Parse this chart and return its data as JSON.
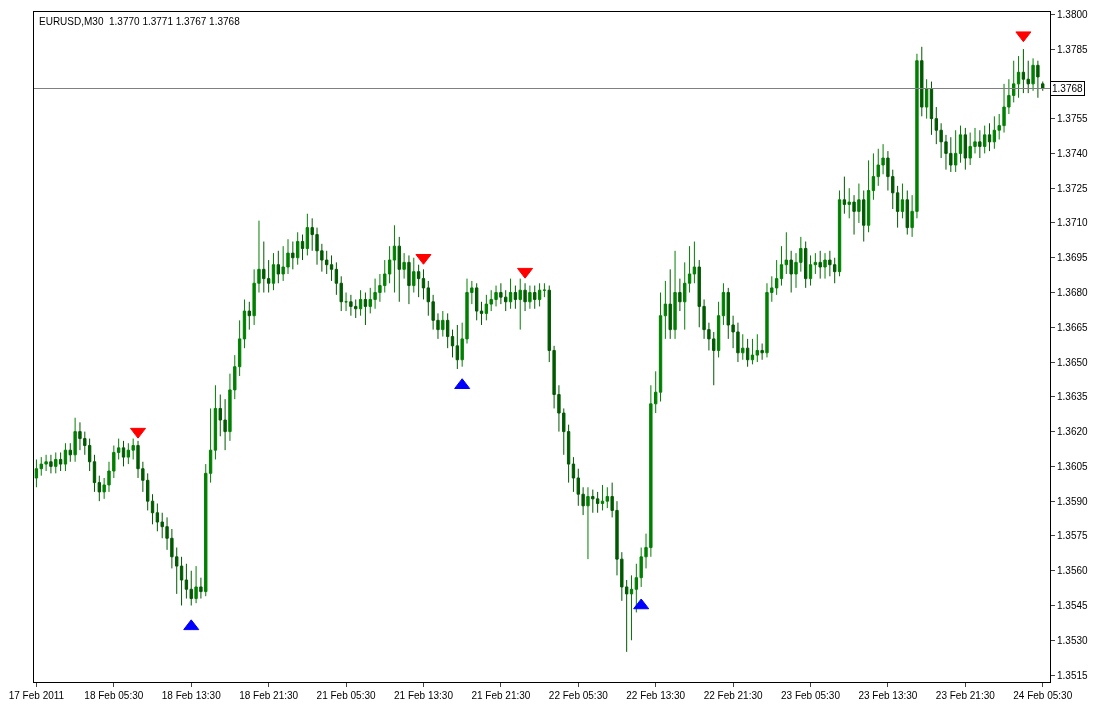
{
  "chart_data": {
    "type": "candlestick",
    "title": "EURUSD,M30  1.3770 1.3771 1.3767 1.3768",
    "colors": [
      "#008000",
      "#008000",
      "#008000",
      "#005900",
      "#008000",
      "#005900",
      "#008000",
      "#005900",
      "#008000",
      "#005900",
      "#005900",
      "#005900",
      "#005900",
      "#005900",
      "#008000",
      "#008000",
      "#008000",
      "#008000",
      "#005900",
      "#008000",
      "#008000",
      "#005900",
      "#005900",
      "#005900",
      "#005900",
      "#005900",
      "#005900",
      "#005900",
      "#005900",
      "#005900",
      "#005900",
      "#005900",
      "#005900",
      "#008000",
      "#005900",
      "#008000",
      "#008000",
      "#008000",
      "#005900",
      "#005900",
      "#008000",
      "#008000",
      "#008000",
      "#008000",
      "#005900",
      "#008000",
      "#008000",
      "#005900",
      "#005900",
      "#008000",
      "#005900",
      "#008000",
      "#008000",
      "#005900",
      "#008000",
      "#005900",
      "#008000",
      "#005900",
      "#005900",
      "#005900",
      "#005900",
      "#005900",
      "#005900",
      "#005900",
      "#008000",
      "#005900",
      "#005900",
      "#008000",
      "#005900",
      "#008000",
      "#008000",
      "#008000",
      "#008000",
      "#008000",
      "#008000",
      "#005900",
      "#008000",
      "#005900",
      "#008000",
      "#005900",
      "#005900",
      "#005900",
      "#005900",
      "#005900",
      "#008000",
      "#005900",
      "#005900",
      "#005900",
      "#008000",
      "#008000",
      "#008000",
      "#005900",
      "#005900",
      "#008000",
      "#008000",
      "#008000",
      "#005900",
      "#005900",
      "#008000",
      "#005900",
      "#008000",
      "#005900",
      "#008000",
      "#005900",
      "#008000",
      "#008000",
      "#005900",
      "#005900",
      "#005900",
      "#005900",
      "#005900",
      "#005900",
      "#005900",
      "#005900",
      "#008000",
      "#005900",
      "#005900",
      "#008000",
      "#008000",
      "#005900",
      "#005900",
      "#005900",
      "#005900",
      "#008000",
      "#008000",
      "#008000",
      "#008000",
      "#008000",
      "#008000",
      "#008000",
      "#008000",
      "#005900",
      "#008000",
      "#005900",
      "#008000",
      "#008000",
      "#008000",
      "#005900",
      "#005900",
      "#005900",
      "#005900",
      "#008000",
      "#008000",
      "#005900",
      "#005900",
      "#005900",
      "#008000",
      "#005900",
      "#008000",
      "#008000",
      "#005900",
      "#008000",
      "#008000",
      "#008000",
      "#008000",
      "#008000",
      "#005900",
      "#008000",
      "#008000",
      "#005900",
      "#008000",
      "#008000",
      "#005900",
      "#008000",
      "#005900",
      "#005900",
      "#008000",
      "#005900",
      "#008000",
      "#005900",
      "#008000",
      "#005900",
      "#008000",
      "#008000",
      "#008000",
      "#008000",
      "#005900",
      "#005900",
      "#005900",
      "#008000",
      "#005900",
      "#008000",
      "#008000",
      "#005900",
      "#008000",
      "#005900",
      "#005900",
      "#005900",
      "#005900",
      "#005900",
      "#008000",
      "#008000",
      "#005900",
      "#008000",
      "#008000",
      "#005900",
      "#008000",
      "#005900",
      "#008000",
      "#008000",
      "#008000",
      "#008000",
      "#008000",
      "#008000",
      "#005900",
      "#005900",
      "#008000",
      "#005900",
      "#005900"
    ],
    "categories": [
      "17 Feb 2011",
      null,
      null,
      null,
      null,
      null,
      null,
      null,
      null,
      null,
      null,
      null,
      null,
      null,
      null,
      null,
      "18 Feb 05:30",
      null,
      null,
      null,
      null,
      null,
      null,
      null,
      null,
      null,
      null,
      null,
      null,
      null,
      null,
      null,
      "18 Feb 13:30",
      null,
      null,
      null,
      null,
      null,
      null,
      null,
      null,
      null,
      null,
      null,
      null,
      null,
      null,
      null,
      "18 Feb 21:30",
      null,
      null,
      null,
      null,
      null,
      null,
      null,
      null,
      null,
      null,
      null,
      null,
      null,
      null,
      null,
      "21 Feb 05:30",
      null,
      null,
      null,
      null,
      null,
      null,
      null,
      null,
      null,
      null,
      null,
      null,
      null,
      null,
      null,
      "21 Feb 13:30",
      null,
      null,
      null,
      null,
      null,
      null,
      null,
      null,
      null,
      null,
      null,
      null,
      null,
      null,
      null,
      "21 Feb 21:30",
      null,
      null,
      null,
      null,
      null,
      null,
      null,
      null,
      null,
      null,
      null,
      null,
      null,
      null,
      null,
      "22 Feb 05:30",
      null,
      null,
      null,
      null,
      null,
      null,
      null,
      null,
      null,
      null,
      null,
      null,
      null,
      null,
      null,
      "22 Feb 13:30",
      null,
      null,
      null,
      null,
      null,
      null,
      null,
      null,
      null,
      null,
      null,
      null,
      null,
      null,
      null,
      "22 Feb 21:30",
      null,
      null,
      null,
      null,
      null,
      null,
      null,
      null,
      null,
      null,
      null,
      null,
      null,
      null,
      null,
      "23 Feb 05:30",
      null,
      null,
      null,
      null,
      null,
      null,
      null,
      null,
      null,
      null,
      null,
      null,
      null,
      null,
      null,
      "23 Feb 13:30",
      null,
      null,
      null,
      null,
      null,
      null,
      null,
      null,
      null,
      null,
      null,
      null,
      null,
      null,
      null,
      "23 Feb 21:30",
      null,
      null,
      null,
      null,
      null,
      null,
      null,
      null,
      null,
      null,
      null,
      null,
      null,
      null,
      null,
      "24 Feb 05:30"
    ],
    "ohlc": [
      [
        1.36,
        1.3608,
        1.3596,
        1.3604
      ],
      [
        1.3604,
        1.3609,
        1.3601,
        1.3606
      ],
      [
        1.3606,
        1.361,
        1.3603,
        1.3607
      ],
      [
        1.3607,
        1.361,
        1.3602,
        1.3605
      ],
      [
        1.3605,
        1.3611,
        1.3602,
        1.3608
      ],
      [
        1.3608,
        1.3611,
        1.3603,
        1.3606
      ],
      [
        1.3606,
        1.3615,
        1.3603,
        1.3612
      ],
      [
        1.3612,
        1.3615,
        1.3607,
        1.361
      ],
      [
        1.361,
        1.3626,
        1.3607,
        1.362
      ],
      [
        1.362,
        1.3624,
        1.3612,
        1.3617
      ],
      [
        1.3617,
        1.362,
        1.361,
        1.3614
      ],
      [
        1.3614,
        1.3617,
        1.3603,
        1.3607
      ],
      [
        1.3607,
        1.361,
        1.3594,
        1.3598
      ],
      [
        1.3598,
        1.3601,
        1.359,
        1.3594
      ],
      [
        1.3594,
        1.36,
        1.3591,
        1.3597
      ],
      [
        1.3597,
        1.3607,
        1.3594,
        1.3603
      ],
      [
        1.3603,
        1.3614,
        1.36,
        1.3611
      ],
      [
        1.3611,
        1.3617,
        1.3608,
        1.3613
      ],
      [
        1.3613,
        1.3616,
        1.3605,
        1.3609
      ],
      [
        1.3609,
        1.3615,
        1.3606,
        1.3612
      ],
      [
        1.3612,
        1.3617,
        1.3608,
        1.3614
      ],
      [
        1.3614,
        1.3616,
        1.36,
        1.3604
      ],
      [
        1.3604,
        1.3607,
        1.3594,
        1.3599
      ],
      [
        1.3599,
        1.3602,
        1.3586,
        1.359
      ],
      [
        1.359,
        1.3593,
        1.358,
        1.3585
      ],
      [
        1.3585,
        1.3589,
        1.3577,
        1.3581
      ],
      [
        1.3581,
        1.3585,
        1.3574,
        1.3579
      ],
      [
        1.3579,
        1.3583,
        1.3569,
        1.3574
      ],
      [
        1.3574,
        1.3578,
        1.3561,
        1.3566
      ],
      [
        1.3566,
        1.357,
        1.355,
        1.3562
      ],
      [
        1.3562,
        1.3566,
        1.3545,
        1.3556
      ],
      [
        1.3556,
        1.3563,
        1.3548,
        1.3552
      ],
      [
        1.3552,
        1.356,
        1.3545,
        1.3548
      ],
      [
        1.3548,
        1.3562,
        1.3546,
        1.3553
      ],
      [
        1.3553,
        1.3557,
        1.3548,
        1.3551
      ],
      [
        1.3551,
        1.3606,
        1.3549,
        1.3602
      ],
      [
        1.3602,
        1.363,
        1.3598,
        1.3612
      ],
      [
        1.3612,
        1.364,
        1.3608,
        1.363
      ],
      [
        1.363,
        1.3636,
        1.3618,
        1.3625
      ],
      [
        1.3625,
        1.3634,
        1.3612,
        1.362
      ],
      [
        1.362,
        1.3645,
        1.3616,
        1.3638
      ],
      [
        1.3638,
        1.3653,
        1.3634,
        1.3648
      ],
      [
        1.3648,
        1.3668,
        1.3644,
        1.366
      ],
      [
        1.366,
        1.3677,
        1.3656,
        1.3672
      ],
      [
        1.3672,
        1.3676,
        1.3664,
        1.367
      ],
      [
        1.367,
        1.369,
        1.3666,
        1.3684
      ],
      [
        1.3684,
        1.3711,
        1.368,
        1.369
      ],
      [
        1.369,
        1.3702,
        1.368,
        1.3686
      ],
      [
        1.3686,
        1.3694,
        1.368,
        1.3684
      ],
      [
        1.3684,
        1.3697,
        1.3681,
        1.3692
      ],
      [
        1.3692,
        1.3698,
        1.3684,
        1.3688
      ],
      [
        1.3688,
        1.37,
        1.3685,
        1.3691
      ],
      [
        1.3691,
        1.3703,
        1.3688,
        1.3697
      ],
      [
        1.3697,
        1.3702,
        1.369,
        1.3695
      ],
      [
        1.3695,
        1.3706,
        1.3692,
        1.3702
      ],
      [
        1.3702,
        1.3705,
        1.3694,
        1.3699
      ],
      [
        1.3699,
        1.3714,
        1.3696,
        1.3708
      ],
      [
        1.3708,
        1.3712,
        1.3698,
        1.3705
      ],
      [
        1.3705,
        1.3708,
        1.3692,
        1.3698
      ],
      [
        1.3698,
        1.3701,
        1.3689,
        1.3694
      ],
      [
        1.3694,
        1.3698,
        1.3688,
        1.3692
      ],
      [
        1.3692,
        1.3696,
        1.3685,
        1.369
      ],
      [
        1.369,
        1.3693,
        1.3679,
        1.3684
      ],
      [
        1.3684,
        1.3687,
        1.3672,
        1.3676
      ],
      [
        1.3676,
        1.368,
        1.3672,
        1.3676
      ],
      [
        1.3676,
        1.3679,
        1.367,
        1.3674
      ],
      [
        1.3674,
        1.3677,
        1.3669,
        1.3673
      ],
      [
        1.3673,
        1.3681,
        1.367,
        1.3677
      ],
      [
        1.3677,
        1.368,
        1.3666,
        1.3674
      ],
      [
        1.3674,
        1.3682,
        1.3671,
        1.3677
      ],
      [
        1.3677,
        1.3686,
        1.3673,
        1.368
      ],
      [
        1.368,
        1.3688,
        1.3676,
        1.3683
      ],
      [
        1.3683,
        1.3694,
        1.368,
        1.3688
      ],
      [
        1.3688,
        1.37,
        1.3684,
        1.3694
      ],
      [
        1.3694,
        1.3709,
        1.368,
        1.37
      ],
      [
        1.37,
        1.3704,
        1.3676,
        1.369
      ],
      [
        1.369,
        1.3697,
        1.3686,
        1.3693
      ],
      [
        1.3693,
        1.3696,
        1.3675,
        1.3683
      ],
      [
        1.3683,
        1.3695,
        1.368,
        1.3689
      ],
      [
        1.3689,
        1.3692,
        1.3678,
        1.3686
      ],
      [
        1.3686,
        1.369,
        1.3677,
        1.3682
      ],
      [
        1.3682,
        1.3685,
        1.367,
        1.3676
      ],
      [
        1.3676,
        1.3679,
        1.3664,
        1.3668
      ],
      [
        1.3668,
        1.3671,
        1.366,
        1.3664
      ],
      [
        1.3664,
        1.3672,
        1.3661,
        1.3668
      ],
      [
        1.3668,
        1.3671,
        1.3656,
        1.3661
      ],
      [
        1.3661,
        1.3664,
        1.3652,
        1.3657
      ],
      [
        1.3657,
        1.3666,
        1.3647,
        1.3651
      ],
      [
        1.3651,
        1.3667,
        1.3648,
        1.366
      ],
      [
        1.366,
        1.3686,
        1.3658,
        1.368
      ],
      [
        1.368,
        1.3685,
        1.3675,
        1.3682
      ],
      [
        1.3682,
        1.3684,
        1.3668,
        1.3672
      ],
      [
        1.3672,
        1.3676,
        1.3666,
        1.3671
      ],
      [
        1.3671,
        1.3679,
        1.3668,
        1.3675
      ],
      [
        1.3675,
        1.3681,
        1.3672,
        1.3677
      ],
      [
        1.3677,
        1.3683,
        1.3674,
        1.368
      ],
      [
        1.368,
        1.3684,
        1.3675,
        1.3678
      ],
      [
        1.3678,
        1.3681,
        1.3672,
        1.3676
      ],
      [
        1.3676,
        1.3686,
        1.3673,
        1.368
      ],
      [
        1.368,
        1.3683,
        1.3673,
        1.3677
      ],
      [
        1.3677,
        1.3686,
        1.3664,
        1.3681
      ],
      [
        1.3681,
        1.3684,
        1.3672,
        1.3676
      ],
      [
        1.3676,
        1.3683,
        1.3673,
        1.368
      ],
      [
        1.368,
        1.3683,
        1.3673,
        1.3677
      ],
      [
        1.3677,
        1.3684,
        1.3674,
        1.3681
      ],
      [
        1.3681,
        1.3684,
        1.3678,
        1.3681
      ],
      [
        1.3681,
        1.3683,
        1.365,
        1.3655
      ],
      [
        1.3655,
        1.3657,
        1.363,
        1.3636
      ],
      [
        1.3636,
        1.364,
        1.362,
        1.3628
      ],
      [
        1.3628,
        1.363,
        1.361,
        1.362
      ],
      [
        1.362,
        1.3623,
        1.3598,
        1.3606
      ],
      [
        1.3606,
        1.3609,
        1.3594,
        1.36
      ],
      [
        1.36,
        1.3604,
        1.3588,
        1.3593
      ],
      [
        1.3593,
        1.3596,
        1.3584,
        1.3588
      ],
      [
        1.3588,
        1.3596,
        1.3565,
        1.3592
      ],
      [
        1.3592,
        1.3595,
        1.3585,
        1.3591
      ],
      [
        1.3591,
        1.3594,
        1.3585,
        1.3589
      ],
      [
        1.3589,
        1.3597,
        1.3586,
        1.359
      ],
      [
        1.359,
        1.3596,
        1.3587,
        1.3592
      ],
      [
        1.3592,
        1.3598,
        1.3583,
        1.3586
      ],
      [
        1.3586,
        1.359,
        1.3558,
        1.3565
      ],
      [
        1.3565,
        1.3568,
        1.3547,
        1.3553
      ],
      [
        1.3553,
        1.3556,
        1.3525,
        1.355
      ],
      [
        1.355,
        1.3558,
        1.353,
        1.3552
      ],
      [
        1.3552,
        1.3563,
        1.3542,
        1.3557
      ],
      [
        1.3557,
        1.357,
        1.3553,
        1.3566
      ],
      [
        1.3566,
        1.3576,
        1.3561,
        1.357
      ],
      [
        1.357,
        1.364,
        1.3566,
        1.3632
      ],
      [
        1.3632,
        1.3646,
        1.3628,
        1.3637
      ],
      [
        1.3637,
        1.368,
        1.3633,
        1.367
      ],
      [
        1.367,
        1.3685,
        1.366,
        1.3675
      ],
      [
        1.3675,
        1.369,
        1.366,
        1.3664
      ],
      [
        1.3664,
        1.3698,
        1.366,
        1.368
      ],
      [
        1.368,
        1.3686,
        1.3672,
        1.3676
      ],
      [
        1.3676,
        1.3693,
        1.3664,
        1.3684
      ],
      [
        1.3684,
        1.37,
        1.368,
        1.3688
      ],
      [
        1.3688,
        1.3702,
        1.3684,
        1.3691
      ],
      [
        1.3691,
        1.3694,
        1.3665,
        1.3674
      ],
      [
        1.3674,
        1.3677,
        1.366,
        1.3664
      ],
      [
        1.3664,
        1.3667,
        1.3655,
        1.366
      ],
      [
        1.366,
        1.3663,
        1.364,
        1.3655
      ],
      [
        1.3655,
        1.3676,
        1.3652,
        1.367
      ],
      [
        1.367,
        1.3684,
        1.3666,
        1.368
      ],
      [
        1.368,
        1.3682,
        1.366,
        1.3666
      ],
      [
        1.3666,
        1.367,
        1.3656,
        1.3663
      ],
      [
        1.3663,
        1.3667,
        1.365,
        1.3654
      ],
      [
        1.3654,
        1.3662,
        1.3651,
        1.3656
      ],
      [
        1.3656,
        1.366,
        1.3648,
        1.3651
      ],
      [
        1.3651,
        1.366,
        1.3649,
        1.3653
      ],
      [
        1.3653,
        1.3662,
        1.365,
        1.3655
      ],
      [
        1.3655,
        1.3658,
        1.3651,
        1.3654
      ],
      [
        1.3654,
        1.3684,
        1.3652,
        1.368
      ],
      [
        1.368,
        1.3687,
        1.3676,
        1.3682
      ],
      [
        1.3682,
        1.3694,
        1.3679,
        1.3686
      ],
      [
        1.3686,
        1.37,
        1.3683,
        1.3692
      ],
      [
        1.3692,
        1.3706,
        1.3688,
        1.3694
      ],
      [
        1.3694,
        1.3698,
        1.368,
        1.3688
      ],
      [
        1.3688,
        1.3697,
        1.3682,
        1.3693
      ],
      [
        1.3693,
        1.3704,
        1.3689,
        1.3699
      ],
      [
        1.3699,
        1.3702,
        1.3682,
        1.3686
      ],
      [
        1.3686,
        1.3696,
        1.3683,
        1.3692
      ],
      [
        1.3692,
        1.3697,
        1.3688,
        1.3693
      ],
      [
        1.3693,
        1.3698,
        1.3686,
        1.3691
      ],
      [
        1.3691,
        1.3697,
        1.3686,
        1.3694
      ],
      [
        1.3694,
        1.3698,
        1.3687,
        1.3692
      ],
      [
        1.3692,
        1.3695,
        1.3684,
        1.3689
      ],
      [
        1.3689,
        1.3724,
        1.3687,
        1.372
      ],
      [
        1.372,
        1.373,
        1.3714,
        1.3718
      ],
      [
        1.3718,
        1.3725,
        1.3712,
        1.3719
      ],
      [
        1.3719,
        1.3722,
        1.3705,
        1.3715
      ],
      [
        1.3715,
        1.3727,
        1.371,
        1.372
      ],
      [
        1.372,
        1.3724,
        1.3702,
        1.3709
      ],
      [
        1.3709,
        1.3737,
        1.3706,
        1.3724
      ],
      [
        1.3724,
        1.374,
        1.372,
        1.373
      ],
      [
        1.373,
        1.3742,
        1.3726,
        1.3735
      ],
      [
        1.3735,
        1.3744,
        1.3731,
        1.3738
      ],
      [
        1.3738,
        1.3741,
        1.3724,
        1.373
      ],
      [
        1.373,
        1.3733,
        1.3716,
        1.3723
      ],
      [
        1.3723,
        1.3726,
        1.3708,
        1.3715
      ],
      [
        1.3715,
        1.3727,
        1.3712,
        1.372
      ],
      [
        1.372,
        1.3724,
        1.3705,
        1.3708
      ],
      [
        1.3708,
        1.3722,
        1.3704,
        1.3715
      ],
      [
        1.3715,
        1.3783,
        1.3712,
        1.378
      ],
      [
        1.378,
        1.3786,
        1.3756,
        1.376
      ],
      [
        1.376,
        1.3772,
        1.3755,
        1.3768
      ],
      [
        1.3768,
        1.3771,
        1.3748,
        1.3755
      ],
      [
        1.3755,
        1.376,
        1.3744,
        1.375
      ],
      [
        1.375,
        1.3753,
        1.3738,
        1.3745
      ],
      [
        1.3745,
        1.3748,
        1.3733,
        1.374
      ],
      [
        1.374,
        1.3747,
        1.3732,
        1.3735
      ],
      [
        1.3735,
        1.375,
        1.3732,
        1.374
      ],
      [
        1.374,
        1.3752,
        1.3736,
        1.3748
      ],
      [
        1.3748,
        1.3751,
        1.3733,
        1.3738
      ],
      [
        1.3738,
        1.3749,
        1.3735,
        1.3743
      ],
      [
        1.3743,
        1.3751,
        1.374,
        1.3745
      ],
      [
        1.3745,
        1.375,
        1.3738,
        1.3743
      ],
      [
        1.3743,
        1.3752,
        1.374,
        1.3748
      ],
      [
        1.3748,
        1.3753,
        1.3741,
        1.3745
      ],
      [
        1.3745,
        1.3756,
        1.3742,
        1.375
      ],
      [
        1.375,
        1.3757,
        1.3746,
        1.3752
      ],
      [
        1.3752,
        1.377,
        1.3749,
        1.376
      ],
      [
        1.376,
        1.3772,
        1.3757,
        1.3765
      ],
      [
        1.3765,
        1.378,
        1.3762,
        1.377
      ],
      [
        1.377,
        1.3782,
        1.3764,
        1.3775
      ],
      [
        1.3775,
        1.3785,
        1.3766,
        1.3772
      ],
      [
        1.3772,
        1.378,
        1.3766,
        1.377
      ],
      [
        1.377,
        1.3781,
        1.3767,
        1.3778
      ],
      [
        1.3778,
        1.378,
        1.3764,
        1.3773
      ],
      [
        1.377,
        1.3771,
        1.3767,
        1.3768
      ]
    ],
    "series": [
      {
        "type": "scatter",
        "color": "#ff0000",
        "marker": "triangle",
        "values": [
          null,
          null,
          null,
          null,
          null,
          null,
          null,
          null,
          null,
          null,
          null,
          null,
          null,
          null,
          null,
          null,
          null,
          null,
          null,
          null,
          null,
          1.362,
          null,
          null,
          null,
          null,
          null,
          null,
          null,
          null,
          null,
          null,
          null,
          null,
          null,
          null,
          null,
          null,
          null,
          null,
          null,
          null,
          null,
          null,
          null,
          null,
          null,
          null,
          null,
          null,
          null,
          null,
          null,
          null,
          null,
          null,
          null,
          null,
          null,
          null,
          null,
          null,
          null,
          null,
          null,
          null,
          null,
          null,
          null,
          null,
          null,
          null,
          null,
          null,
          null,
          null,
          null,
          null,
          null,
          null,
          1.3695,
          null,
          null,
          null,
          null,
          null,
          null,
          null,
          null,
          null,
          null,
          null,
          null,
          null,
          null,
          null,
          null,
          null,
          null,
          null,
          null,
          1.3689,
          null,
          null,
          null,
          null,
          null,
          null,
          null,
          null,
          null,
          null,
          null,
          null,
          null,
          null,
          null,
          null,
          null,
          null,
          null,
          null,
          null,
          null,
          null,
          null,
          null,
          null,
          null,
          null,
          null,
          null,
          null,
          null,
          null,
          null,
          null,
          null,
          null,
          null,
          null,
          null,
          null,
          null,
          null,
          null,
          null,
          null,
          null,
          null,
          null,
          null,
          null,
          null,
          null,
          null,
          null,
          null,
          null,
          null,
          null,
          null,
          null,
          null,
          null,
          null,
          null,
          null,
          null,
          null,
          null,
          null,
          null,
          null,
          null,
          null,
          null,
          null,
          null,
          null,
          null,
          null,
          null,
          null,
          null,
          null,
          null,
          null,
          null,
          null,
          null,
          null,
          null,
          null,
          null,
          null,
          null,
          null,
          null,
          null,
          null,
          null,
          null,
          null,
          1.3791,
          null,
          null,
          null,
          null
        ]
      },
      {
        "type": "scatter",
        "color": "#0000ff",
        "marker": "triangle",
        "values": [
          null,
          null,
          null,
          null,
          null,
          null,
          null,
          null,
          null,
          null,
          null,
          null,
          null,
          null,
          null,
          null,
          null,
          null,
          null,
          null,
          null,
          null,
          null,
          null,
          null,
          null,
          null,
          null,
          null,
          null,
          null,
          null,
          1.3536,
          null,
          null,
          null,
          null,
          null,
          null,
          null,
          null,
          null,
          null,
          null,
          null,
          null,
          null,
          null,
          null,
          null,
          null,
          null,
          null,
          null,
          null,
          null,
          null,
          null,
          null,
          null,
          null,
          null,
          null,
          null,
          null,
          null,
          null,
          null,
          null,
          null,
          null,
          null,
          null,
          null,
          null,
          null,
          null,
          null,
          null,
          null,
          null,
          null,
          null,
          null,
          null,
          null,
          null,
          null,
          1.364,
          null,
          null,
          null,
          null,
          null,
          null,
          null,
          null,
          null,
          null,
          null,
          null,
          null,
          null,
          null,
          null,
          null,
          null,
          null,
          null,
          null,
          null,
          null,
          null,
          null,
          null,
          null,
          null,
          null,
          null,
          null,
          null,
          null,
          null,
          null,
          null,
          1.3545,
          null,
          null,
          null,
          null,
          null,
          null,
          null,
          null,
          null,
          null,
          null,
          null,
          null,
          null,
          null,
          null,
          null,
          null,
          null,
          null,
          null,
          null,
          null,
          null,
          null,
          null,
          null,
          null,
          null,
          null,
          null,
          null,
          null,
          null,
          null,
          null,
          null,
          null,
          null,
          null,
          null,
          null,
          null,
          null,
          null,
          null,
          null,
          null,
          null,
          null,
          null,
          null,
          null,
          null,
          null,
          null,
          null,
          null,
          null,
          null,
          null,
          null,
          null,
          null,
          null,
          null,
          null,
          null,
          null,
          null,
          null,
          null,
          null,
          null,
          null,
          null,
          null,
          null,
          null,
          null,
          null,
          null,
          null
        ]
      }
    ],
    "ylim": [
      1.3512,
      1.3801
    ],
    "yticks": [
      {
        "value": 1.3515,
        "label": "1.3515"
      },
      {
        "value": 1.353,
        "label": "1.3530"
      },
      {
        "value": 1.3545,
        "label": "1.3545"
      },
      {
        "value": 1.356,
        "label": "1.3560"
      },
      {
        "value": 1.3575,
        "label": "1.3575"
      },
      {
        "value": 1.359,
        "label": "1.3590"
      },
      {
        "value": 1.3605,
        "label": "1.3605"
      },
      {
        "value": 1.362,
        "label": "1.3620"
      },
      {
        "value": 1.3635,
        "label": "1.3635"
      },
      {
        "value": 1.365,
        "label": "1.3650"
      },
      {
        "value": 1.3665,
        "label": "1.3665"
      },
      {
        "value": 1.368,
        "label": "1.3680"
      },
      {
        "value": 1.3695,
        "label": "1.3695"
      },
      {
        "value": 1.371,
        "label": "1.3710"
      },
      {
        "value": 1.3725,
        "label": "1.3725"
      },
      {
        "value": 1.374,
        "label": "1.3740"
      },
      {
        "value": 1.3755,
        "label": "1.3755"
      },
      {
        "value": 1.3785,
        "label": "1.3785"
      },
      {
        "value": 1.38,
        "label": "1.3800"
      }
    ],
    "ref_lines": [
      {
        "axis": "y",
        "value": 1.3768,
        "label": "1.3768",
        "color": "#808080"
      }
    ]
  }
}
